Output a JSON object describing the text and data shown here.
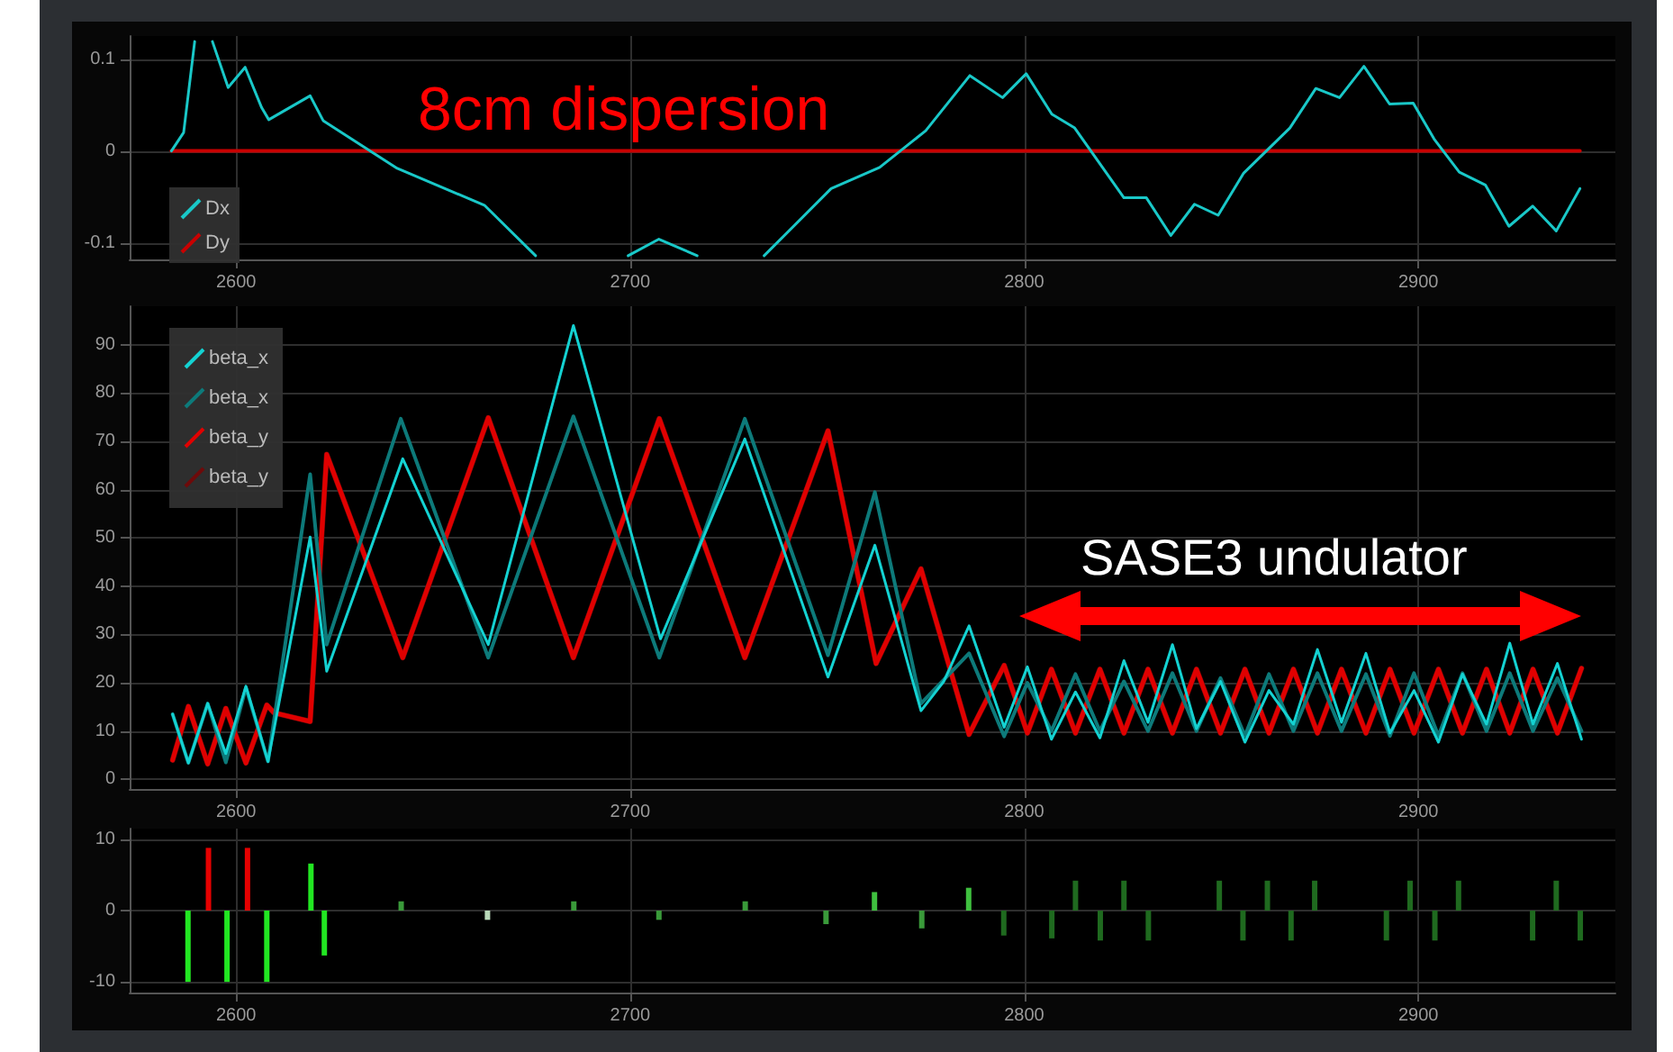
{
  "chart_data": [
    {
      "type": "line",
      "annotations": [
        "8cm dispersion"
      ],
      "xlim": [
        2573,
        2950
      ],
      "xticks": [
        2600,
        2700,
        2800,
        2900
      ],
      "ylim": [
        -0.118,
        0.125
      ],
      "yticks": [
        -0.1,
        0,
        0.1
      ],
      "grid": true,
      "legend": "bottom left",
      "marker": "none",
      "line_style": "solid",
      "series": [
        {
          "name": "Dx",
          "color": "#19c8c8",
          "x": [
            2583.6,
            2586.7,
            2589.5,
            2591,
            2594,
            2598,
            2602.3,
            2606.5,
            2608.3,
            2618.8,
            2622.1,
            2640.9,
            2663,
            2676,
            2688,
            2699.5,
            2707.3,
            2717,
            2725,
            2734,
            2751,
            2763.3,
            2775,
            2786.2,
            2794.5,
            2800.5,
            2807,
            2812.8,
            2825.3,
            2831,
            2837.2,
            2843.2,
            2849.2,
            2855.7,
            2867.4,
            2874,
            2880,
            2886.2,
            2892.7,
            2898.7,
            2904,
            2910.4,
            2917,
            2923,
            2929,
            2935,
            2941
          ],
          "values": [
            0,
            0.02,
            0.119,
            null,
            0.119,
            0.069,
            0.091,
            0.047,
            0.034,
            0.06,
            0.033,
            -0.019,
            -0.059,
            -0.114,
            null,
            -0.114,
            -0.096,
            -0.114,
            null,
            -0.114,
            -0.041,
            -0.018,
            0.022,
            0.082,
            0.058,
            0.084,
            0.04,
            0.025,
            -0.051,
            -0.051,
            -0.092,
            -0.058,
            -0.07,
            -0.024,
            0.025,
            0.068,
            0.058,
            0.092,
            0.051,
            0.052,
            0.013,
            -0.023,
            -0.037,
            -0.082,
            -0.06,
            -0.087,
            -0.041
          ]
        },
        {
          "name": "Dy",
          "color": "#c80000",
          "x": [
            2583.6,
            2941
          ],
          "values": [
            0,
            0
          ]
        }
      ]
    },
    {
      "type": "line",
      "annotations": [
        "SASE3 undulator"
      ],
      "xlim": [
        2573,
        2950
      ],
      "xticks": [
        2600,
        2700,
        2800,
        2900
      ],
      "ylim": [
        -2,
        98
      ],
      "yticks": [
        0,
        10,
        20,
        30,
        40,
        50,
        60,
        70,
        80,
        90
      ],
      "grid": true,
      "legend": "top left",
      "marker": "none",
      "line_style": "solid",
      "series": [
        {
          "name": "beta_x",
          "color": "#14d2d2",
          "x": [
            2583.9,
            2587.9,
            2592.8,
            2597.4,
            2602.5,
            2608.1,
            2618.8,
            2623,
            2642.3,
            2664,
            2685.6,
            2707.7,
            2729.1,
            2750.2,
            2762.1,
            2773.8,
            2779.6,
            2786,
            2794.9,
            2800.8,
            2806.9,
            2813,
            2819.2,
            2825.3,
            2831.4,
            2837.6,
            2843.7,
            2849.8,
            2856,
            2862.1,
            2868.3,
            2874.4,
            2880.5,
            2886.7,
            2892.8,
            2898.9,
            2905.1,
            2911.2,
            2917.3,
            2923.2,
            2929.1,
            2935.3,
            2941.4
          ],
          "values": [
            13.5,
            3.4,
            15.7,
            5.3,
            19.3,
            3.7,
            50.2,
            22.4,
            66.4,
            27.9,
            94,
            29.1,
            70.5,
            21.2,
            48.5,
            14.2,
            20.3,
            31.8,
            10.8,
            23.3,
            8.3,
            18.1,
            8.6,
            24.6,
            11.8,
            27.9,
            10.5,
            20.3,
            7.7,
            18.4,
            11.4,
            26.9,
            11.8,
            26.1,
            9.6,
            18.4,
            7.7,
            21.8,
            11.4,
            28.2,
            11.4,
            24,
            8.3
          ]
        },
        {
          "name": "beta_x",
          "color": "#0d7a7a",
          "x": [
            2583.9,
            2587.9,
            2592.8,
            2597.4,
            2602.5,
            2608.1,
            2618.8,
            2623,
            2641.8,
            2664,
            2685.6,
            2707.4,
            2729.1,
            2750.2,
            2762.1,
            2773.8,
            2786,
            2794.9,
            2800.8,
            2806.9,
            2813,
            2819.2,
            2825.3,
            2831.4,
            2837.6,
            2843.7,
            2849.8,
            2856,
            2862.1,
            2868.3,
            2874.4,
            2880.5,
            2886.7,
            2892.8,
            2898.9,
            2905.1,
            2911.2,
            2917.3,
            2923.2,
            2929.1,
            2935.3,
            2941.4
          ],
          "values": [
            13.5,
            3.4,
            15.7,
            3.5,
            19,
            3.7,
            63.2,
            27.9,
            74.7,
            25.2,
            75.2,
            25.2,
            74.7,
            25.7,
            59.5,
            15.7,
            26.1,
            8.9,
            20,
            10,
            21.8,
            10,
            20.3,
            10,
            22,
            10,
            21,
            9,
            21.8,
            10,
            22,
            10,
            21.8,
            9,
            22,
            9,
            22,
            10,
            22,
            10,
            21,
            10
          ]
        },
        {
          "name": "beta_y",
          "color": "#e00000",
          "x": [
            2583.9,
            2587.9,
            2592.8,
            2597.4,
            2602.5,
            2607.8,
            2609.6,
            2618.8,
            2623,
            2642.3,
            2664,
            2685.6,
            2707.4,
            2729.1,
            2750.2,
            2762.4,
            2773.8,
            2786,
            2794.9,
            2800.8,
            2806.9,
            2813,
            2819.2,
            2825.3,
            2831.4,
            2837.6,
            2843.7,
            2849.8,
            2856,
            2862.1,
            2868.3,
            2874.4,
            2880.5,
            2886.7,
            2892.8,
            2898.9,
            2905.1,
            2911.2,
            2917.3,
            2923.2,
            2929.1,
            2935.3,
            2941.4
          ],
          "values": [
            4,
            15.1,
            3.2,
            14.7,
            3.4,
            15.4,
            13.8,
            12,
            67.3,
            25.2,
            74.9,
            25.2,
            74.7,
            25.2,
            72.2,
            24,
            43.6,
            9.3,
            23.6,
            9.6,
            22.8,
            9.6,
            22.8,
            9.6,
            22.8,
            9.6,
            22.8,
            9.6,
            22.8,
            9.6,
            22.8,
            9.6,
            22.8,
            9.6,
            22.8,
            9.6,
            22.8,
            9.6,
            22.8,
            9.6,
            22.8,
            9.6,
            23
          ]
        },
        {
          "name": "beta_y",
          "color": "#6e0a0a",
          "x": [
            2583.9,
            2587.9,
            2592.8,
            2597.4,
            2602.5,
            2607.8,
            2609.6,
            2618.8,
            2623,
            2642.3,
            2664,
            2685.6,
            2707.4,
            2729.1,
            2750.2,
            2762.4,
            2773.8,
            2786,
            2794.9,
            2800.8,
            2806.9,
            2813,
            2819.2,
            2825.3,
            2831.4,
            2837.6,
            2843.7,
            2849.8,
            2856,
            2862.1,
            2868.3,
            2874.4,
            2880.5,
            2886.7,
            2892.8,
            2898.9,
            2905.1,
            2911.2,
            2917.3,
            2923.2,
            2929.1,
            2935.3,
            2941.4
          ],
          "values": [
            4,
            15.1,
            3.2,
            14.7,
            3.4,
            15.4,
            13.8,
            12,
            67.3,
            25.2,
            74.9,
            25.2,
            74.7,
            25.2,
            72.2,
            24,
            43.6,
            9.3,
            23.6,
            9.6,
            22.8,
            9.6,
            22.8,
            9.6,
            22.8,
            9.6,
            22.8,
            9.6,
            22.8,
            9.6,
            22.8,
            9.6,
            22.8,
            9.6,
            22.8,
            9.6,
            22.8,
            9.6,
            22.8,
            9.6,
            22.8,
            9.6,
            23
          ]
        }
      ]
    },
    {
      "type": "bar",
      "xlim": [
        2573,
        2950
      ],
      "xticks": [
        2600,
        2700,
        2800,
        2900
      ],
      "ylim": [
        -11.5,
        11.5
      ],
      "yticks": [
        -10,
        0,
        10
      ],
      "grid": true,
      "x": [
        2587.8,
        2593,
        2597.7,
        2602.9,
        2607.8,
        2619,
        2622.4,
        2641.9,
        2663.8,
        2685.7,
        2707.3,
        2729.2,
        2749.7,
        2762,
        2774,
        2785.9,
        2794.8,
        2807,
        2813,
        2819.3,
        2825.3,
        2831.5,
        2849.5,
        2855.5,
        2861.7,
        2867.7,
        2873.7,
        2891.9,
        2897.9,
        2904.2,
        2910.2,
        2929,
        2935,
        2941.1
      ],
      "values": [
        -10,
        8.8,
        -10,
        8.8,
        -10,
        6.6,
        -6.3,
        1.3,
        -1.3,
        1.3,
        -1.3,
        1.3,
        -1.9,
        2.6,
        -2.5,
        3.2,
        -3.5,
        -3.9,
        4.2,
        -4.2,
        4.2,
        -4.2,
        4.2,
        -4.2,
        4.2,
        -4.2,
        4.2,
        -4.2,
        4.2,
        -4.2,
        4.2,
        -4.2,
        4.2,
        -4.2
      ],
      "colors": [
        "#22e622",
        "#e60000",
        "#22e622",
        "#e60000",
        "#22e622",
        "#22e622",
        "#22e622",
        "#3a9a3a",
        "#b8d8b8",
        "#3a9a3a",
        "#3a9a3a",
        "#3a9a3a",
        "#3a9a3a",
        "#3fc03f",
        "#3a9a3a",
        "#3fc03f",
        "#1f6a1f",
        "#1f6a1f",
        "#1f6a1f",
        "#1f6a1f",
        "#1f6a1f",
        "#1f6a1f",
        "#1f6a1f",
        "#1f6a1f",
        "#1f6a1f",
        "#1f6a1f",
        "#1f6a1f",
        "#1f6a1f",
        "#1f6a1f",
        "#1f6a1f",
        "#1f6a1f",
        "#1f6a1f",
        "#1f6a1f",
        "#1f6a1f"
      ]
    }
  ]
}
